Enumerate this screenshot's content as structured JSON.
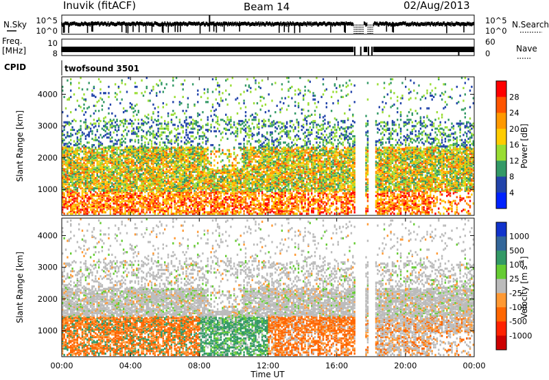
{
  "header": {
    "station": "Inuvik (fitACF)",
    "beam": "Beam 14",
    "date": "02/Aug/2013"
  },
  "top_panels": {
    "nsky_label": "N.Sky",
    "nsky_ticks": [
      "10^5",
      "10^0"
    ],
    "nsearch_label": "N.Search",
    "nsearch_ticks": [
      "10^5",
      "10^0"
    ],
    "freq_label_1": "Freq.",
    "freq_label_2": "[MHz]",
    "freq_ticks": [
      "10",
      "8"
    ],
    "nave_label": "Nave",
    "nave_ticks": [
      "60",
      "0"
    ],
    "cpid_label": "CPID",
    "cpid_value": "twofsound 3501"
  },
  "chart_data": [
    {
      "type": "heatmap",
      "name": "power",
      "ylabel": "Slant Range [km]",
      "yticks": [
        "1000",
        "2000",
        "3000",
        "4000"
      ],
      "ylim": [
        180,
        4550
      ],
      "colorbar_label": "Power [dB]",
      "colorbar_ticks": [
        "28",
        "24",
        "20",
        "16",
        "12",
        "8",
        "4"
      ],
      "colorbar_colors": [
        "#ff0000",
        "#ff5500",
        "#ff9900",
        "#ffcc00",
        "#99dd33",
        "#339966",
        "#2244aa",
        "#0022ff"
      ],
      "xticks": [
        "00:00",
        "04:00",
        "08:00",
        "12:00",
        "16:00",
        "20:00",
        "00:00"
      ],
      "xlim_hours": [
        0,
        24
      ]
    },
    {
      "type": "heatmap",
      "name": "velocity",
      "ylabel": "Slant Range [km]",
      "yticks": [
        "1000",
        "2000",
        "3000",
        "4000"
      ],
      "ylim": [
        180,
        4550
      ],
      "colorbar_label": "Velocity [m s^-1]",
      "colorbar_ticks": [
        "1000",
        "500",
        "100",
        "25",
        "-25",
        "-100",
        "-500",
        "-1000"
      ],
      "colorbar_colors": [
        "#1133cc",
        "#336699",
        "#339966",
        "#66cc33",
        "#bbbbbb",
        "#ff9933",
        "#ff6600",
        "#ff2200",
        "#cc0000"
      ],
      "xticks": [
        "00:00",
        "04:00",
        "08:00",
        "12:00",
        "16:00",
        "20:00",
        "00:00"
      ],
      "xlabel": "Time UT",
      "xlim_hours": [
        0,
        24
      ]
    }
  ]
}
